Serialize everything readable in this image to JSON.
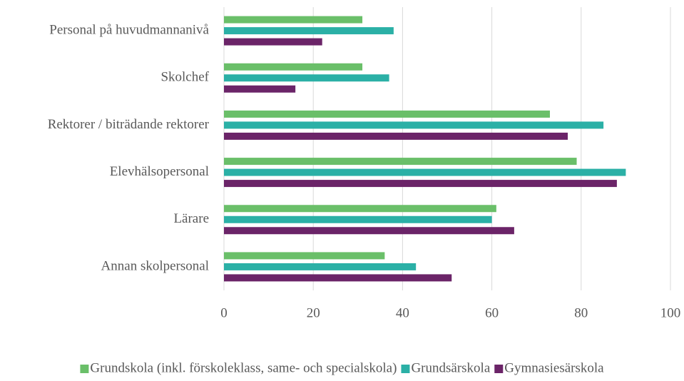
{
  "chart_data": {
    "type": "hbar",
    "categories": [
      "Personal på huvudmannanivå",
      "Skolchef",
      "Rektorer / biträdande rektorer",
      "Elevhälsopersonal",
      "Lärare",
      "Annan skolpersonal"
    ],
    "series": [
      {
        "name": "Grundskola (inkl. förskoleklass, same- och specialskola)",
        "color": "#6abf69",
        "values": [
          31,
          31,
          73,
          79,
          61,
          36
        ]
      },
      {
        "name": "Grundsärskola",
        "color": "#2bb0a6",
        "values": [
          38,
          37,
          85,
          90,
          60,
          43
        ]
      },
      {
        "name": "Gymnasiesärskola",
        "color": "#6b2468",
        "values": [
          22,
          16,
          77,
          88,
          65,
          51
        ]
      }
    ],
    "xlim": [
      0,
      100
    ],
    "xticks": [
      0,
      20,
      40,
      60,
      80,
      100
    ],
    "grid": true,
    "legend": "bottom"
  }
}
